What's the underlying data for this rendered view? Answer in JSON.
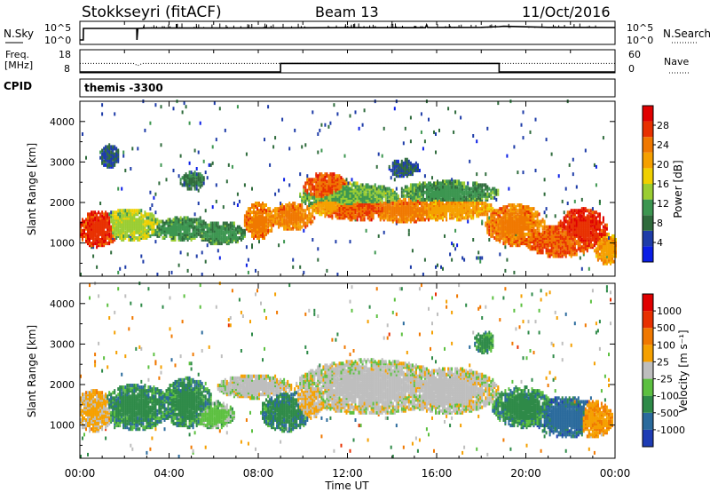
{
  "header": {
    "station": "Stokkseyri (fitACF)",
    "beam": "Beam 13",
    "date": "11/Oct/2016"
  },
  "noise_panel": {
    "left_label": "N.Sky",
    "left_ticks": [
      "10^5",
      "10^0"
    ],
    "right_label": "N.Search",
    "right_ticks": [
      "10^5",
      "10^0"
    ]
  },
  "freq_panel": {
    "left_label_1": "Freq.",
    "left_label_2": "[MHz]",
    "left_ticks": [
      "18",
      "8"
    ],
    "right_label": "Nave",
    "right_ticks": [
      "60",
      "0"
    ]
  },
  "cpid_panel": {
    "label": "CPID",
    "value": "themis -3300"
  },
  "power_panel": {
    "ylabel": "Slant Range [km]",
    "yticks": [
      "4000",
      "3000",
      "2000",
      "1000"
    ],
    "colorbar_label": "Power [dB]",
    "colorbar_ticks": [
      "28",
      "24",
      "20",
      "16",
      "12",
      "8",
      "4"
    ]
  },
  "velocity_panel": {
    "ylabel": "Slant Range [km]",
    "yticks": [
      "4000",
      "3000",
      "2000",
      "1000"
    ],
    "colorbar_label": "Velocity [m s⁻¹]",
    "colorbar_ticks": [
      "1000",
      "500",
      "100",
      "25",
      "-25",
      "-100",
      "-500",
      "-1000"
    ]
  },
  "x_axis": {
    "ticks": [
      "00:00",
      "04:00",
      "08:00",
      "12:00",
      "16:00",
      "20:00",
      "00:00"
    ],
    "label": "Time UT"
  },
  "colors": {
    "power_scale": [
      "#0a1ee6",
      "#1e3ca8",
      "#2f6b3c",
      "#3c9650",
      "#9acd32",
      "#f0d000",
      "#f5a000",
      "#f07800",
      "#e83000",
      "#e00000"
    ],
    "velocity_scale": [
      "#1e3cb4",
      "#2a6a9c",
      "#2e8a48",
      "#5cc040",
      "#bebebe",
      "#f5a000",
      "#f07800",
      "#e83000",
      "#e00000"
    ]
  },
  "chart_data": [
    {
      "type": "line",
      "name": "noise",
      "x_unit": "hours UT",
      "x_range": [
        0,
        24
      ],
      "series": [
        {
          "x": [
            0,
            0.15,
            0.16,
            2.55,
            2.56,
            2.6,
            3,
            6,
            9,
            12,
            15.5,
            15.55,
            15.6,
            18,
            18.8,
            19,
            21,
            24
          ],
          "y": [
            0.15,
            0.15,
            0.8,
            0.8,
            0.15,
            0.8,
            0.82,
            0.82,
            0.83,
            0.84,
            0.84,
            1.0,
            0.85,
            0.86,
            0.9,
            0.92,
            0.86,
            0.85
          ]
        }
      ]
    },
    {
      "type": "line",
      "name": "frequency",
      "x_unit": "hours UT",
      "x_range": [
        0,
        24
      ],
      "ylim": [
        8,
        18
      ],
      "series": [
        {
          "x": [
            0,
            9,
            9,
            18.8,
            18.8,
            24
          ],
          "y": [
            8,
            8,
            12,
            12,
            8,
            8
          ]
        },
        {
          "x": [
            0,
            2.4,
            2.6,
            2.8,
            9,
            18.8,
            24
          ],
          "y": [
            12,
            12,
            11,
            12,
            12,
            12,
            12
          ]
        }
      ]
    },
    {
      "type": "heatmap",
      "name": "power",
      "x_unit": "hours UT",
      "y_unit": "km",
      "xlim": [
        0,
        24
      ],
      "ylim": [
        180,
        4500
      ],
      "clim": [
        0,
        30
      ],
      "colormap": "power_scale",
      "blobs": [
        {
          "t": 0.8,
          "r": 1300,
          "dt": 0.8,
          "dr": 400,
          "v": 26
        },
        {
          "t": 2.2,
          "r": 1400,
          "dt": 1.2,
          "dr": 350,
          "v": 14
        },
        {
          "t": 4.5,
          "r": 1300,
          "dt": 1.2,
          "dr": 250,
          "v": 10
        },
        {
          "t": 6.3,
          "r": 1200,
          "dt": 1.0,
          "dr": 250,
          "v": 10
        },
        {
          "t": 8.0,
          "r": 1500,
          "dt": 0.6,
          "dr": 400,
          "v": 22
        },
        {
          "t": 9.5,
          "r": 1600,
          "dt": 0.9,
          "dr": 300,
          "v": 22
        },
        {
          "t": 11.0,
          "r": 2300,
          "dt": 0.9,
          "dr": 350,
          "v": 24
        },
        {
          "t": 11.2,
          "r": 1900,
          "dt": 0.8,
          "dr": 250,
          "v": 20
        },
        {
          "t": 12.5,
          "r": 1800,
          "dt": 1.8,
          "dr": 250,
          "v": 24
        },
        {
          "t": 14.5,
          "r": 1750,
          "dt": 1.6,
          "dr": 250,
          "v": 22
        },
        {
          "t": 16.5,
          "r": 1800,
          "dt": 1.8,
          "dr": 250,
          "v": 20
        },
        {
          "t": 12.0,
          "r": 2100,
          "dt": 2.0,
          "dr": 300,
          "v": 12
        },
        {
          "t": 16.5,
          "r": 2200,
          "dt": 2.0,
          "dr": 250,
          "v": 10
        },
        {
          "t": 19.5,
          "r": 1400,
          "dt": 1.2,
          "dr": 450,
          "v": 22
        },
        {
          "t": 21.5,
          "r": 1000,
          "dt": 1.4,
          "dr": 350,
          "v": 24
        },
        {
          "t": 22.5,
          "r": 1300,
          "dt": 1.0,
          "dr": 450,
          "v": 26
        },
        {
          "t": 23.6,
          "r": 800,
          "dt": 0.5,
          "dr": 350,
          "v": 20
        },
        {
          "t": 1.3,
          "r": 3100,
          "dt": 0.4,
          "dr": 250,
          "v": 6
        },
        {
          "t": 14.5,
          "r": 2800,
          "dt": 0.6,
          "dr": 200,
          "v": 6
        },
        {
          "t": 5.0,
          "r": 2500,
          "dt": 0.5,
          "dr": 200,
          "v": 8
        }
      ]
    },
    {
      "type": "heatmap",
      "name": "velocity",
      "x_unit": "hours UT",
      "y_unit": "km",
      "xlim": [
        0,
        24
      ],
      "ylim": [
        180,
        4500
      ],
      "clim": [
        -1000,
        1000
      ],
      "colormap": "velocity_scale",
      "blobs": [
        {
          "t": 0.6,
          "r": 1300,
          "dt": 0.8,
          "dr": 450,
          "v": 150
        },
        {
          "t": 2.5,
          "r": 1400,
          "dt": 1.4,
          "dr": 500,
          "v": -450
        },
        {
          "t": 4.8,
          "r": 1500,
          "dt": 1.0,
          "dr": 550,
          "v": -450
        },
        {
          "t": 6.0,
          "r": 1200,
          "dt": 0.8,
          "dr": 300,
          "v": -200
        },
        {
          "t": 7.8,
          "r": 1900,
          "dt": 1.5,
          "dr": 250,
          "v": 0
        },
        {
          "t": 9.2,
          "r": 1300,
          "dt": 1.0,
          "dr": 450,
          "v": -500
        },
        {
          "t": 10.2,
          "r": 1500,
          "dt": 0.6,
          "dr": 350,
          "v": 120
        },
        {
          "t": 13.0,
          "r": 1900,
          "dt": 3.0,
          "dr": 600,
          "v": 0
        },
        {
          "t": 16.5,
          "r": 1800,
          "dt": 2.0,
          "dr": 500,
          "v": 0
        },
        {
          "t": 19.8,
          "r": 1400,
          "dt": 1.2,
          "dr": 450,
          "v": -450
        },
        {
          "t": 21.8,
          "r": 1150,
          "dt": 1.3,
          "dr": 450,
          "v": -650
        },
        {
          "t": 23.0,
          "r": 1100,
          "dt": 0.8,
          "dr": 400,
          "v": 300
        },
        {
          "t": 18.1,
          "r": 3000,
          "dt": 0.4,
          "dr": 250,
          "v": -400
        }
      ]
    }
  ]
}
